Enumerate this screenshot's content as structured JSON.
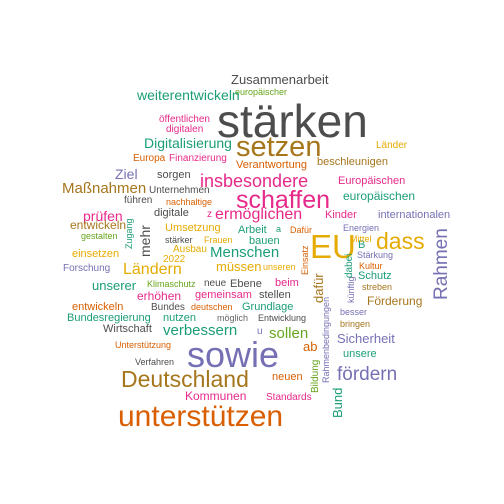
{
  "palette": {
    "grey": "#4d4d4d",
    "orange": "#d95f02",
    "purple": "#7570b3",
    "magenta": "#e7298a",
    "green": "#1b9e77",
    "lime": "#66a61e",
    "gold": "#e6ab02",
    "brown": "#a6761d",
    "darkgrey": "#666666"
  },
  "words": [
    {
      "text": "Zusammenarbeit",
      "color": "grey"
    },
    {
      "text": "europäischer",
      "color": "lime"
    },
    {
      "text": "weiterentwickeln",
      "color": "green"
    },
    {
      "text": "stärken",
      "color": "grey"
    },
    {
      "text": "öffentlichen",
      "color": "magenta"
    },
    {
      "text": "digitalen",
      "color": "magenta"
    },
    {
      "text": "setzen",
      "color": "brown"
    },
    {
      "text": "Digitalisierung",
      "color": "green"
    },
    {
      "text": "Länder",
      "color": "gold"
    },
    {
      "text": "Europa",
      "color": "orange"
    },
    {
      "text": "Finanzierung",
      "color": "magenta"
    },
    {
      "text": "Verantwortung",
      "color": "orange"
    },
    {
      "text": "beschleunigen",
      "color": "brown"
    },
    {
      "text": "Ziel",
      "color": "purple"
    },
    {
      "text": "sorgen",
      "color": "grey"
    },
    {
      "text": "insbesondere",
      "color": "magenta"
    },
    {
      "text": "Europäischen",
      "color": "magenta"
    },
    {
      "text": "Unternehmen",
      "color": "grey"
    },
    {
      "text": "Maßnahmen",
      "color": "brown"
    },
    {
      "text": "führen",
      "color": "grey"
    },
    {
      "text": "nachhaltige",
      "color": "orange"
    },
    {
      "text": "schaffen",
      "color": "magenta"
    },
    {
      "text": "europäischen",
      "color": "green"
    },
    {
      "text": "prüfen",
      "color": "magenta"
    },
    {
      "text": "digitale",
      "color": "grey"
    },
    {
      "text": "ermöglichen",
      "color": "magenta"
    },
    {
      "text": "Kinder",
      "color": "magenta"
    },
    {
      "text": "internationalen",
      "color": "purple"
    },
    {
      "text": "entwickeln",
      "color": "brown"
    },
    {
      "text": "Zugang",
      "color": "green"
    },
    {
      "text": "mehr",
      "color": "grey"
    },
    {
      "text": "gestalten",
      "color": "lime"
    },
    {
      "text": "Umsetzung",
      "color": "gold"
    },
    {
      "text": "Arbeit",
      "color": "green"
    },
    {
      "text": "Dafür",
      "color": "orange"
    },
    {
      "text": "Energien",
      "color": "purple"
    },
    {
      "text": "dass",
      "color": "gold"
    },
    {
      "text": "stärker",
      "color": "grey"
    },
    {
      "text": "Frauen",
      "color": "gold"
    },
    {
      "text": "bauen",
      "color": "green"
    },
    {
      "text": "EU",
      "color": "gold"
    },
    {
      "text": "Mittel",
      "color": "gold"
    },
    {
      "text": "Ausbau",
      "color": "gold"
    },
    {
      "text": "Menschen",
      "color": "green"
    },
    {
      "text": "einsetzen",
      "color": "gold"
    },
    {
      "text": "2022",
      "color": "gold"
    },
    {
      "text": "Stärkung",
      "color": "purple"
    },
    {
      "text": "Rahmen",
      "color": "purple"
    },
    {
      "text": "Ländern",
      "color": "gold"
    },
    {
      "text": "müssen",
      "color": "gold"
    },
    {
      "text": "unseren",
      "color": "gold"
    },
    {
      "text": "Forschung",
      "color": "purple"
    },
    {
      "text": "Kultur",
      "color": "orange"
    },
    {
      "text": "Klimaschutz",
      "color": "lime"
    },
    {
      "text": "neue",
      "color": "grey"
    },
    {
      "text": "Ebene",
      "color": "grey"
    },
    {
      "text": "beim",
      "color": "magenta"
    },
    {
      "text": "Schutz",
      "color": "green"
    },
    {
      "text": "unserer",
      "color": "green"
    },
    {
      "text": "erhöhen",
      "color": "magenta"
    },
    {
      "text": "gemeinsam",
      "color": "magenta"
    },
    {
      "text": "stellen",
      "color": "grey"
    },
    {
      "text": "künftig",
      "color": "purple"
    },
    {
      "text": "streben",
      "color": "brown"
    },
    {
      "text": "entwickeln",
      "color": "orange"
    },
    {
      "text": "Bundes",
      "color": "grey"
    },
    {
      "text": "deutschen",
      "color": "orange"
    },
    {
      "text": "Grundlage",
      "color": "green"
    },
    {
      "text": "Förderung",
      "color": "brown"
    },
    {
      "text": "Bundesregierung",
      "color": "green"
    },
    {
      "text": "nutzen",
      "color": "green"
    },
    {
      "text": "möglich",
      "color": "darkgrey"
    },
    {
      "text": "Entwicklung",
      "color": "grey"
    },
    {
      "text": "besser",
      "color": "purple"
    },
    {
      "text": "bringen",
      "color": "brown"
    },
    {
      "text": "Wirtschaft",
      "color": "grey"
    },
    {
      "text": "verbessern",
      "color": "green"
    },
    {
      "text": "sollen",
      "color": "lime"
    },
    {
      "text": "Sicherheit",
      "color": "purple"
    },
    {
      "text": "Unterstützung",
      "color": "orange"
    },
    {
      "text": "ab",
      "color": "orange"
    },
    {
      "text": "unsere",
      "color": "green"
    },
    {
      "text": "sowie",
      "color": "purple"
    },
    {
      "text": "Verfahren",
      "color": "grey"
    },
    {
      "text": "Deutschland",
      "color": "brown"
    },
    {
      "text": "fördern",
      "color": "purple"
    },
    {
      "text": "neuen",
      "color": "orange"
    },
    {
      "text": "Kommunen",
      "color": "magenta"
    },
    {
      "text": "Standards",
      "color": "magenta"
    },
    {
      "text": "unterstützen",
      "color": "orange"
    },
    {
      "text": "dafür",
      "color": "brown"
    },
    {
      "text": "Einsatz",
      "color": "orange"
    },
    {
      "text": "dabei",
      "color": "green"
    },
    {
      "text": "Rahmenbedingungen",
      "color": "purple"
    },
    {
      "text": "Bildung",
      "color": "lime"
    },
    {
      "text": "Bund",
      "color": "green"
    },
    {
      "text": "z",
      "color": "magenta"
    },
    {
      "text": "a",
      "color": "green"
    },
    {
      "text": "B",
      "color": "green"
    },
    {
      "text": "u",
      "color": "purple"
    }
  ]
}
